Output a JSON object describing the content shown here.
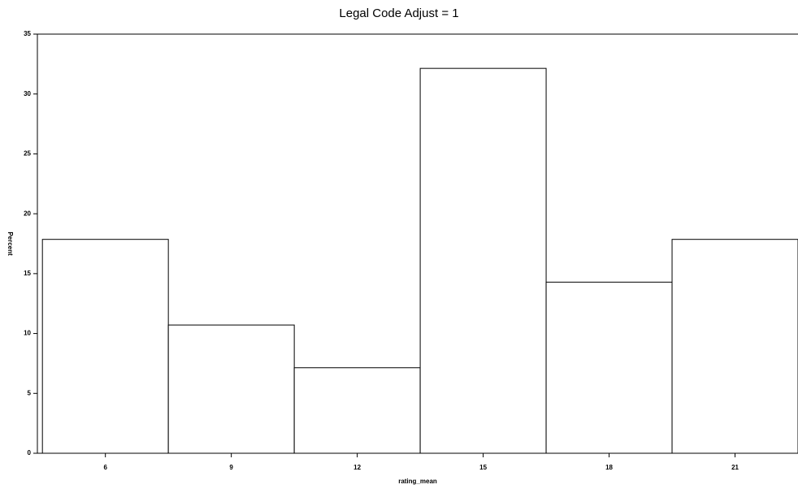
{
  "chart_data": {
    "type": "histogram",
    "title": "Legal Code Adjust =  1",
    "x_label": "rating_mean",
    "y_label": "Percent",
    "bins": [
      4.5,
      7.5,
      10.5,
      13.5,
      16.5,
      19.5,
      22.5
    ],
    "values": [
      17.86,
      10.71,
      7.14,
      32.14,
      14.29,
      17.86
    ],
    "color": "#ffffff",
    "xlim": [
      4.38,
      22.5
    ],
    "xticks": [
      6,
      9,
      12,
      15,
      18,
      21
    ],
    "ylim": [
      0,
      35
    ],
    "yticks": [
      0,
      5,
      10,
      15,
      20,
      25,
      30,
      35
    ],
    "grid": false
  }
}
